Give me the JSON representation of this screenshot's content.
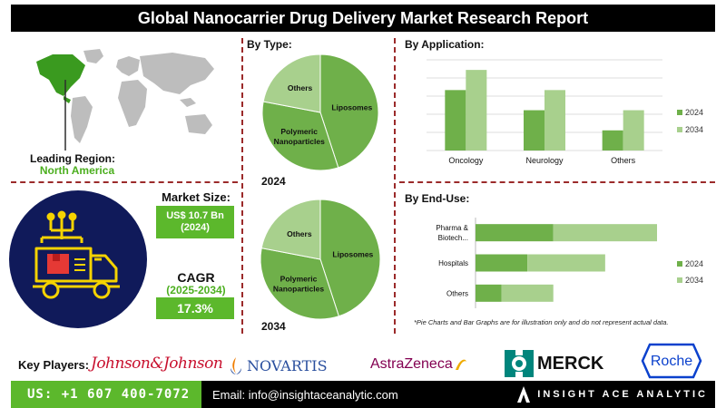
{
  "title": "Global Nanocarrier Drug Delivery Market Research Report",
  "region": {
    "label": "Leading Region:",
    "value": "North America"
  },
  "market_size": {
    "label": "Market Size:",
    "value": "US$ 10.7 Bn",
    "year": "(2024)"
  },
  "cagr": {
    "label": "CAGR",
    "period": "(2025-2034)",
    "value": "17.3%"
  },
  "by_type_title": "By Type:",
  "by_application_title": "By Application:",
  "by_end_use_title": "By End-Use:",
  "disclaimer": "*Pie Charts and Bar Graphs are for illustration only and do not represent actual data.",
  "key_players": {
    "label": "Key Players:",
    "names": [
      "Johnson&Johnson",
      "NOVARTIS",
      "AstraZeneca",
      "MERCK",
      "Roche"
    ]
  },
  "footer": {
    "phone": "US: +1 607 400-7072",
    "email": "Email: info@insightaceanalytic.com",
    "brand": "INSIGHT ACE ANALYTIC"
  },
  "colors": {
    "dark_green": "#5a9a3a",
    "light_green": "#a8d08d",
    "mid_green": "#6fb04a",
    "accent_green": "#5cb82c",
    "navy": "#101a5a",
    "yellow": "#f5d300",
    "divider_red": "#9b2a2a"
  },
  "chart_data": [
    {
      "type": "pie",
      "title": "2024",
      "labels": [
        "Liposomes",
        "Polymeric Nanoparticles",
        "Others"
      ],
      "values": [
        45,
        33,
        22
      ]
    },
    {
      "type": "pie",
      "title": "2034",
      "labels": [
        "Liposomes",
        "Polymeric Nanoparticles",
        "Others"
      ],
      "values": [
        45,
        33,
        22
      ]
    },
    {
      "type": "bar",
      "orientation": "vertical",
      "categories": [
        "Oncology",
        "Neurology",
        "Others"
      ],
      "series": [
        {
          "name": "2024",
          "values": [
            3,
            2,
            1
          ]
        },
        {
          "name": "2034",
          "values": [
            4,
            3,
            2
          ]
        }
      ],
      "ylim": [
        0,
        4.5
      ],
      "legend": "right",
      "grid": true
    },
    {
      "type": "bar",
      "orientation": "horizontal",
      "stacked": true,
      "categories": [
        "Pharma & Biotech...",
        "Hospitals",
        "Others"
      ],
      "series": [
        {
          "name": "2024",
          "values": [
            3,
            2,
            1
          ]
        },
        {
          "name": "2034",
          "values": [
            4,
            3,
            2
          ]
        }
      ],
      "xlim": [
        0,
        7
      ],
      "legend": "right"
    }
  ]
}
